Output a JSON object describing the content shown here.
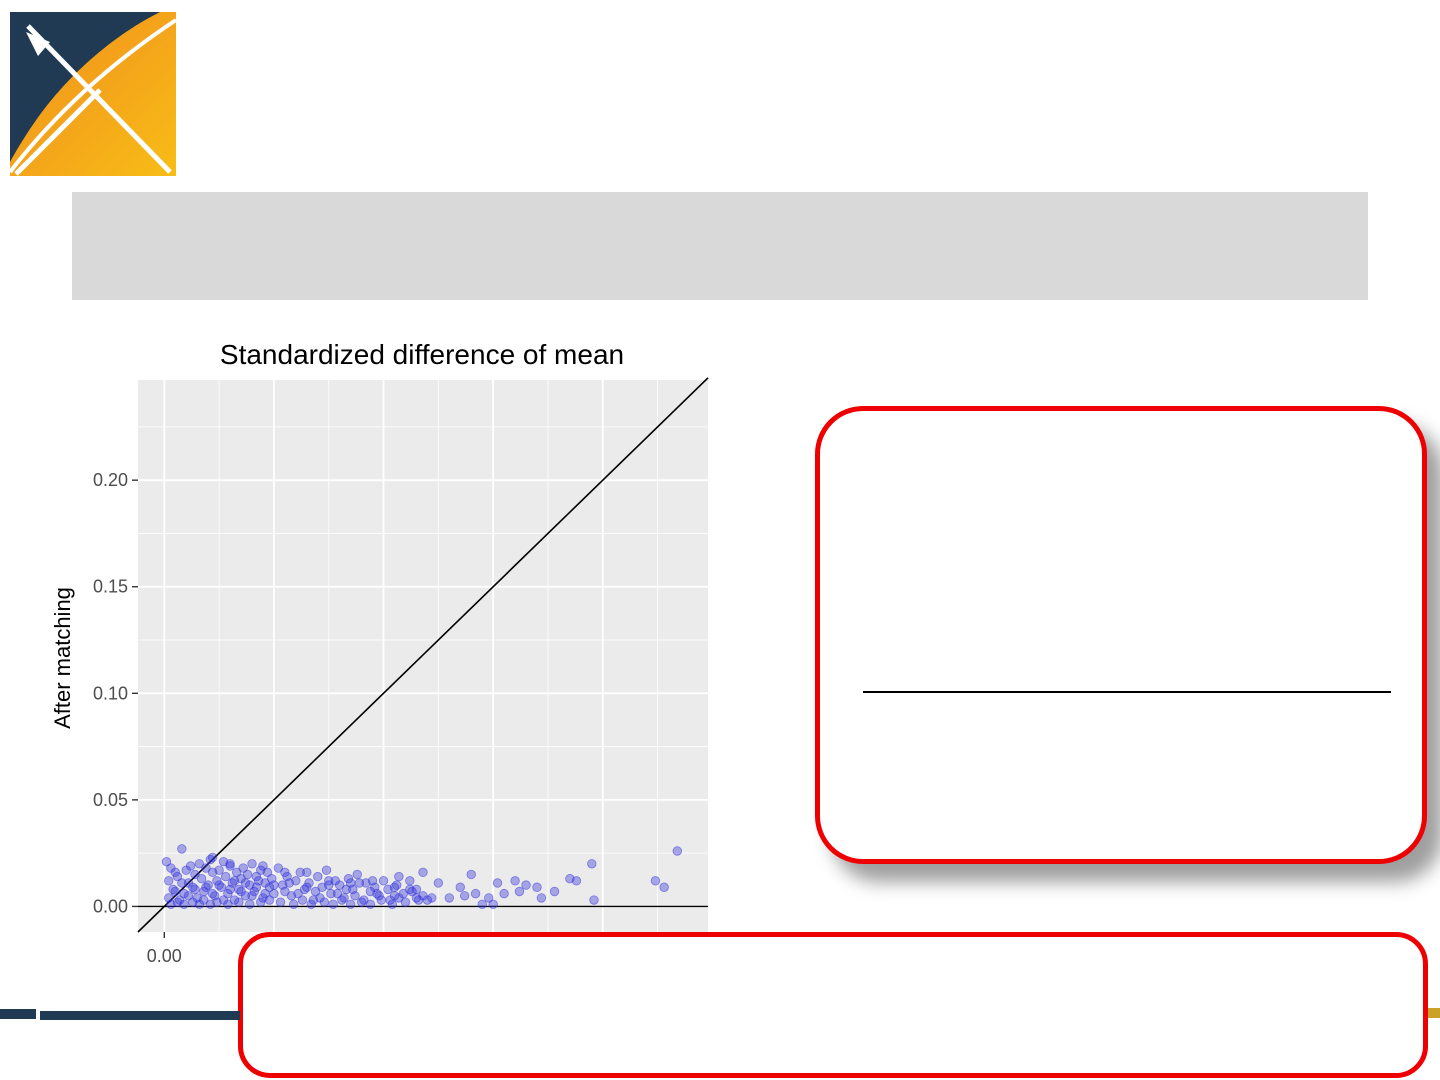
{
  "colors": {
    "logo_navy": "#1f3a52",
    "logo_orange": "#f08c1e",
    "logo_yellow": "#f8bd16",
    "title_band": "#d9d9d9",
    "panel_bg": "#ebebeb",
    "grid": "#ffffff",
    "point": "#3333dd",
    "callout_border": "#ee0000",
    "footer_navy": "#1f3a52",
    "footer_gold": "#c9a227"
  },
  "logo": {
    "icon": "ohdsi-x-logo"
  },
  "chart_data": {
    "type": "scatter",
    "title": "Standardized difference of mean",
    "xlabel": "",
    "ylabel": "After matching",
    "xlim": [
      -0.012,
      0.248
    ],
    "ylim": [
      -0.012,
      0.247
    ],
    "x_ticks": [
      0.0
    ],
    "x_tick_labels": [
      "0.00"
    ],
    "y_ticks": [
      0.0,
      0.05,
      0.1,
      0.15,
      0.2
    ],
    "y_tick_labels": [
      "0.00",
      "0.05",
      "0.10",
      "0.15",
      "0.20"
    ],
    "grid": true,
    "reference_lines": [
      "y = x",
      "y = 0"
    ],
    "series": [
      {
        "color": "#3333dd",
        "points": [
          [
            0.001,
            0.021
          ],
          [
            0.002,
            0.012
          ],
          [
            0.003,
            0.018
          ],
          [
            0.004,
            0.008
          ],
          [
            0.005,
            0.016
          ],
          [
            0.006,
            0.014
          ],
          [
            0.007,
            0.003
          ],
          [
            0.008,
            0.027
          ],
          [
            0.009,
            0.006
          ],
          [
            0.01,
            0.017
          ],
          [
            0.011,
            0.011
          ],
          [
            0.012,
            0.019
          ],
          [
            0.013,
            0.009
          ],
          [
            0.014,
            0.015
          ],
          [
            0.015,
            0.004
          ],
          [
            0.016,
            0.02
          ],
          [
            0.017,
            0.013
          ],
          [
            0.018,
            0.007
          ],
          [
            0.019,
            0.018
          ],
          [
            0.02,
            0.01
          ],
          [
            0.021,
            0.022
          ],
          [
            0.022,
            0.016
          ],
          [
            0.023,
            0.005
          ],
          [
            0.024,
            0.012
          ],
          [
            0.025,
            0.017
          ],
          [
            0.026,
            0.009
          ],
          [
            0.027,
            0.021
          ],
          [
            0.028,
            0.014
          ],
          [
            0.029,
            0.006
          ],
          [
            0.03,
            0.019
          ],
          [
            0.031,
            0.011
          ],
          [
            0.032,
            0.003
          ],
          [
            0.033,
            0.016
          ],
          [
            0.034,
            0.008
          ],
          [
            0.035,
            0.013
          ],
          [
            0.036,
            0.018
          ],
          [
            0.037,
            0.005
          ],
          [
            0.038,
            0.015
          ],
          [
            0.039,
            0.01
          ],
          [
            0.04,
            0.02
          ],
          [
            0.041,
            0.007
          ],
          [
            0.042,
            0.014
          ],
          [
            0.043,
            0.012
          ],
          [
            0.044,
            0.017
          ],
          [
            0.045,
            0.004
          ],
          [
            0.046,
            0.011
          ],
          [
            0.047,
            0.016
          ],
          [
            0.048,
            0.009
          ],
          [
            0.049,
            0.013
          ],
          [
            0.05,
            0.006
          ],
          [
            0.052,
            0.018
          ],
          [
            0.054,
            0.01
          ],
          [
            0.056,
            0.014
          ],
          [
            0.058,
            0.005
          ],
          [
            0.06,
            0.012
          ],
          [
            0.062,
            0.016
          ],
          [
            0.064,
            0.008
          ],
          [
            0.066,
            0.011
          ],
          [
            0.068,
            0.003
          ],
          [
            0.07,
            0.014
          ],
          [
            0.072,
            0.009
          ],
          [
            0.074,
            0.017
          ],
          [
            0.076,
            0.006
          ],
          [
            0.078,
            0.012
          ],
          [
            0.08,
            0.01
          ],
          [
            0.082,
            0.004
          ],
          [
            0.084,
            0.013
          ],
          [
            0.086,
            0.008
          ],
          [
            0.088,
            0.015
          ],
          [
            0.09,
            0.002
          ],
          [
            0.092,
            0.011
          ],
          [
            0.094,
            0.007
          ],
          [
            0.096,
            0.009
          ],
          [
            0.098,
            0.005
          ],
          [
            0.1,
            0.012
          ],
          [
            0.103,
            0.003
          ],
          [
            0.106,
            0.01
          ],
          [
            0.109,
            0.006
          ],
          [
            0.112,
            0.008
          ],
          [
            0.115,
            0.004
          ],
          [
            0.002,
            0.004
          ],
          [
            0.003,
            0.001
          ],
          [
            0.005,
            0.007
          ],
          [
            0.006,
            0.002
          ],
          [
            0.008,
            0.011
          ],
          [
            0.009,
            0.001
          ],
          [
            0.011,
            0.005
          ],
          [
            0.013,
            0.002
          ],
          [
            0.014,
            0.008
          ],
          [
            0.016,
            0.001
          ],
          [
            0.018,
            0.003
          ],
          [
            0.019,
            0.009
          ],
          [
            0.021,
            0.001
          ],
          [
            0.022,
            0.006
          ],
          [
            0.024,
            0.002
          ],
          [
            0.025,
            0.01
          ],
          [
            0.027,
            0.003
          ],
          [
            0.029,
            0.001
          ],
          [
            0.03,
            0.008
          ],
          [
            0.032,
            0.012
          ],
          [
            0.034,
            0.002
          ],
          [
            0.035,
            0.007
          ],
          [
            0.037,
            0.011
          ],
          [
            0.039,
            0.001
          ],
          [
            0.04,
            0.005
          ],
          [
            0.042,
            0.009
          ],
          [
            0.044,
            0.002
          ],
          [
            0.046,
            0.006
          ],
          [
            0.048,
            0.003
          ],
          [
            0.05,
            0.01
          ],
          [
            0.053,
            0.002
          ],
          [
            0.055,
            0.007
          ],
          [
            0.057,
            0.011
          ],
          [
            0.059,
            0.001
          ],
          [
            0.061,
            0.006
          ],
          [
            0.063,
            0.003
          ],
          [
            0.065,
            0.009
          ],
          [
            0.067,
            0.001
          ],
          [
            0.069,
            0.007
          ],
          [
            0.071,
            0.004
          ],
          [
            0.073,
            0.002
          ],
          [
            0.075,
            0.01
          ],
          [
            0.077,
            0.001
          ],
          [
            0.079,
            0.006
          ],
          [
            0.081,
            0.003
          ],
          [
            0.083,
            0.008
          ],
          [
            0.085,
            0.001
          ],
          [
            0.087,
            0.005
          ],
          [
            0.089,
            0.011
          ],
          [
            0.091,
            0.003
          ],
          [
            0.094,
            0.001
          ],
          [
            0.097,
            0.006
          ],
          [
            0.099,
            0.003
          ],
          [
            0.102,
            0.008
          ],
          [
            0.104,
            0.001
          ],
          [
            0.107,
            0.004
          ],
          [
            0.11,
            0.002
          ],
          [
            0.113,
            0.007
          ],
          [
            0.116,
            0.003
          ],
          [
            0.118,
            0.005
          ],
          [
            0.022,
            0.023
          ],
          [
            0.03,
            0.02
          ],
          [
            0.045,
            0.019
          ],
          [
            0.055,
            0.016
          ],
          [
            0.065,
            0.016
          ],
          [
            0.075,
            0.012
          ],
          [
            0.085,
            0.011
          ],
          [
            0.095,
            0.012
          ],
          [
            0.105,
            0.009
          ],
          [
            0.107,
            0.014
          ],
          [
            0.105,
            0.005
          ],
          [
            0.112,
            0.012
          ],
          [
            0.115,
            0.008
          ],
          [
            0.12,
            0.003
          ],
          [
            0.122,
            0.004
          ],
          [
            0.125,
            0.011
          ],
          [
            0.13,
            0.004
          ],
          [
            0.135,
            0.009
          ],
          [
            0.14,
            0.015
          ],
          [
            0.142,
            0.006
          ],
          [
            0.145,
            0.001
          ],
          [
            0.148,
            0.004
          ],
          [
            0.15,
            0.001
          ],
          [
            0.152,
            0.011
          ],
          [
            0.155,
            0.006
          ],
          [
            0.16,
            0.012
          ],
          [
            0.165,
            0.01
          ],
          [
            0.17,
            0.009
          ],
          [
            0.172,
            0.004
          ],
          [
            0.178,
            0.007
          ],
          [
            0.185,
            0.013
          ],
          [
            0.188,
            0.012
          ],
          [
            0.195,
            0.02
          ],
          [
            0.196,
            0.003
          ],
          [
            0.224,
            0.012
          ],
          [
            0.228,
            0.009
          ],
          [
            0.234,
            0.026
          ],
          [
            0.162,
            0.007
          ],
          [
            0.137,
            0.005
          ],
          [
            0.118,
            0.016
          ]
        ]
      }
    ]
  }
}
